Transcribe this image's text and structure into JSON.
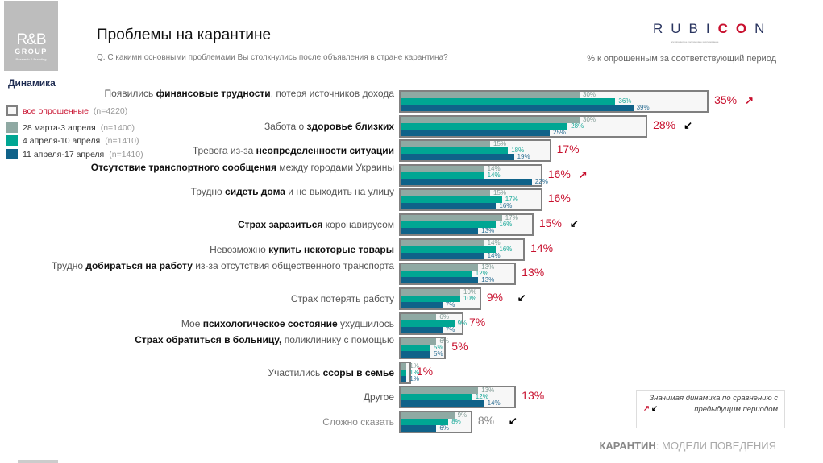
{
  "logo": {
    "rb": "R&B",
    "group": "GROUP",
    "sub": "Research & Branding"
  },
  "title": "Проблемы на карантине",
  "question": "Q. С какими основными проблемами Вы столкнулись после объявления в стране карантина?",
  "rubicon": {
    "a": "RUBI",
    "b": "CO",
    "c": "N",
    "sub": "всеукраинское поллинговое исследование"
  },
  "unit": "% к опрошенным за соответствующий период",
  "legend_title": "Динамика",
  "legend": [
    {
      "label": "все опрошенные",
      "n": "(n=4220)",
      "color": "#f7f7f7"
    },
    {
      "label": "28 марта-3 апреля",
      "n": "(n=1400)",
      "color": "#8fa9a3"
    },
    {
      "label": "4 апреля-10 апреля",
      "n": "(n=1410)",
      "color": "#00a693"
    },
    {
      "label": "11 апреля-17 апреля",
      "n": "(n=1410)",
      "color": "#0f6289"
    }
  ],
  "colors": {
    "total": "#c8102e",
    "up": "#c8102e",
    "down": "#000000"
  },
  "chart_data": {
    "type": "bar",
    "series": [
      {
        "name": "все опрошенные",
        "values": [
          35,
          28,
          17,
          16,
          16,
          15,
          14,
          13,
          9,
          7,
          5,
          1,
          13,
          8
        ]
      },
      {
        "name": "28 марта-3 апреля",
        "values": [
          30,
          30,
          15,
          14,
          15,
          17,
          14,
          13,
          10,
          6,
          6,
          1,
          13,
          9
        ]
      },
      {
        "name": "4 апреля-10 апреля",
        "values": [
          36,
          28,
          18,
          14,
          17,
          16,
          16,
          12,
          10,
          9,
          5,
          1,
          12,
          8
        ]
      },
      {
        "name": "11 апреля-17 апреля",
        "values": [
          39,
          25,
          19,
          22,
          16,
          13,
          14,
          13,
          7,
          7,
          5,
          1,
          14,
          6
        ]
      }
    ],
    "trend": [
      "up",
      "down",
      "",
      "up",
      "",
      "down",
      "",
      "",
      "down",
      "",
      "",
      "",
      "",
      "down"
    ],
    "categories": [
      [
        [
          "Появились ",
          0
        ],
        [
          "финансовые трудности",
          1
        ],
        [
          ", потеря источников дохода",
          0
        ]
      ],
      [
        [
          "Забота о ",
          0
        ],
        [
          "здоровье близких",
          1
        ]
      ],
      [
        [
          "Тревога из-за ",
          0
        ],
        [
          "неопределенности ситуации",
          1
        ]
      ],
      [
        [
          "Отсутствие транспортного сообщения",
          1
        ],
        [
          " между городами Украины",
          0
        ]
      ],
      [
        [
          "Трудно ",
          0
        ],
        [
          "сидеть дома",
          1
        ],
        [
          " и не выходить на улицу",
          0
        ]
      ],
      [
        [
          "Страх заразиться",
          1
        ],
        [
          " коронавирусом",
          0
        ]
      ],
      [
        [
          "Невозможно ",
          0
        ],
        [
          "купить некоторые товары",
          1
        ]
      ],
      [
        [
          "Трудно ",
          0
        ],
        [
          "добираться на работу",
          1
        ],
        [
          " из-за отсутствия общественного транспорта",
          0
        ]
      ],
      [
        [
          "Страх потерять работу",
          0
        ]
      ],
      [
        [
          "Мое ",
          0
        ],
        [
          "психологическое состояние",
          1
        ],
        [
          " ухудшилось",
          0
        ]
      ],
      [
        [
          "Страх обратиться в больницу,",
          1
        ],
        [
          " поликлинику с помощью",
          0
        ]
      ],
      [
        [
          "Участились ",
          0
        ],
        [
          "ссоры в семье",
          1
        ]
      ],
      [
        [
          "Другое",
          0
        ]
      ],
      [
        [
          "Сложно сказать",
          0
        ]
      ]
    ]
  },
  "note": {
    "text": "Значимая динамика по сравнению с предыдущим периодом",
    "up": "↗",
    "down": "↙"
  },
  "footer": {
    "bold": "КАРАНТИН",
    "rest": ": МОДЕЛИ ПОВЕДЕНИЯ"
  }
}
